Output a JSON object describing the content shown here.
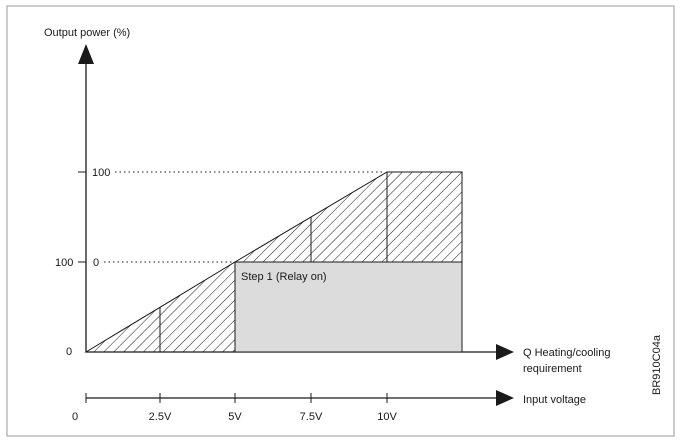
{
  "y_axis_label": "Output power (%)",
  "y_labels": {
    "upper": "100",
    "middle": "100",
    "middle_zero": "0",
    "zero": "0"
  },
  "step_label": "Step 1 (Relay on)",
  "x_axis_label_line1": "Q  Heating/cooling",
  "x_axis_label_line2": "requirement",
  "voltage_axis_label": "Input voltage",
  "voltage_ticks": [
    "0",
    "2.5V",
    "5V",
    "7.5V",
    "10V"
  ],
  "figure_code": "BR910C04a",
  "colors": {
    "stroke": "#1a1a1a",
    "relay_fill": "#dcdcdc",
    "frame": "#9a9a9a"
  }
}
